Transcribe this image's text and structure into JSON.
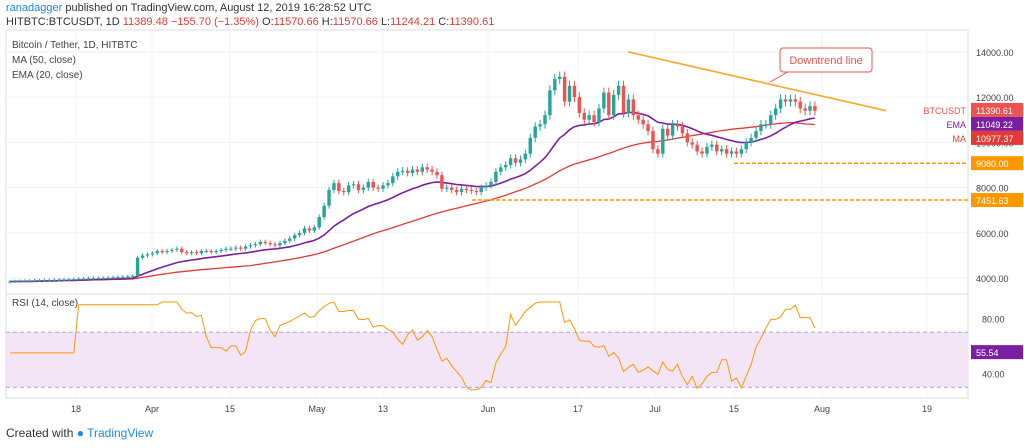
{
  "header": {
    "username": "ranadagger",
    "published_text": "published on TradingView.com, August 12, 2019 16:28:52 UTC",
    "symbol": "HITBTC:BTCUSDT, 1D",
    "last": "11389.48",
    "change": "−155.70 (−1.35%)",
    "o_label": "O:",
    "o": "11570.66",
    "h_label": "H:",
    "h": "11570.66",
    "l_label": "L:",
    "l": "11244.21",
    "c_label": "C:",
    "c": "11390.61"
  },
  "legend": {
    "title": "Bitcoin / Tether, 1D, HITBTC",
    "ma": "MA (50, close)",
    "ema": "EMA (20, close)",
    "rsi": "RSI (14, close)"
  },
  "annotation": "Downtrend line",
  "footer": {
    "prefix": "Created with",
    "brand": "TradingView"
  },
  "colors": {
    "up": "#26a69a",
    "down": "#ef5350",
    "ma": "#e53935",
    "ema": "#7b1fa2",
    "trend": "#ffa726",
    "support": "#ff9800",
    "rsi": "#ff9800",
    "rsi_band": "#f3e5f5"
  },
  "chart_data": [
    {
      "type": "candlestick",
      "title": "Bitcoin / Tether, 1D, HITBTC",
      "ylim": [
        3300,
        14700
      ],
      "y_ticks": [
        "14000.00",
        "12000.00",
        "10000.00",
        "8000.00",
        "6000.00",
        "4000.00"
      ],
      "x_ticks": [
        "18",
        "Apr",
        "15",
        "May",
        "13",
        "Jun",
        "17",
        "Jul",
        "15",
        "Aug",
        "19"
      ],
      "series": [
        {
          "name": "BTCUSDT",
          "last": "11390.61"
        },
        {
          "name": "EMA",
          "last": "11049.22"
        },
        {
          "name": "MA",
          "last": "10977.37"
        }
      ],
      "levels": [
        {
          "label": "9080.00",
          "value": 9080
        },
        {
          "label": "7451.63",
          "value": 7451.63
        }
      ],
      "trendline": {
        "label": "Downtrend line",
        "from": 14000,
        "to": 11400
      },
      "close": [
        3850,
        3860,
        3870,
        3880,
        3890,
        3900,
        3905,
        3910,
        3920,
        3930,
        3935,
        3940,
        3950,
        3960,
        3975,
        3980,
        3990,
        4000,
        4010,
        4010,
        4020,
        4040,
        4050,
        4060,
        4080,
        4100,
        4900,
        5000,
        5050,
        5100,
        5200,
        5150,
        5200,
        5250,
        5300,
        5150,
        5100,
        5150,
        5100,
        5200,
        5200,
        5150,
        5200,
        5250,
        5300,
        5300,
        5350,
        5300,
        5400,
        5450,
        5500,
        5600,
        5550,
        5500,
        5450,
        5550,
        5650,
        5750,
        5900,
        6000,
        6200,
        6100,
        6250,
        6700,
        7200,
        7900,
        8200,
        7850,
        7800,
        8100,
        8150,
        7900,
        8000,
        8250,
        8000,
        7950,
        8100,
        8200,
        8500,
        8700,
        8750,
        8650,
        8800,
        8700,
        8900,
        8800,
        8700,
        8550,
        7950,
        8000,
        7900,
        7800,
        7950,
        7900,
        7850,
        7800,
        8000,
        8100,
        8250,
        8700,
        8900,
        9000,
        9300,
        9100,
        9250,
        9500,
        10200,
        10700,
        10800,
        11200,
        12300,
        12800,
        12900,
        11800,
        12500,
        12000,
        11300,
        11000,
        11200,
        10900,
        11500,
        12200,
        11200,
        12100,
        12500,
        11300,
        11900,
        11200,
        11000,
        10800,
        10500,
        9700,
        9500,
        10600,
        10300,
        10800,
        10700,
        10400,
        10000,
        9900,
        9600,
        9500,
        9800,
        9900,
        9600,
        9700,
        9500,
        9600,
        9500,
        9700,
        10000,
        10200,
        10500,
        10800,
        10800,
        11200,
        11500,
        11900,
        11800,
        11900,
        11800,
        11500,
        11400,
        11600,
        11390
      ],
      "rsi_panel": {
        "name": "RSI (14, close)",
        "ylim": [
          28,
          92
        ],
        "ticks": [
          "80.00",
          "40.00"
        ],
        "last": "55.54"
      }
    }
  ]
}
